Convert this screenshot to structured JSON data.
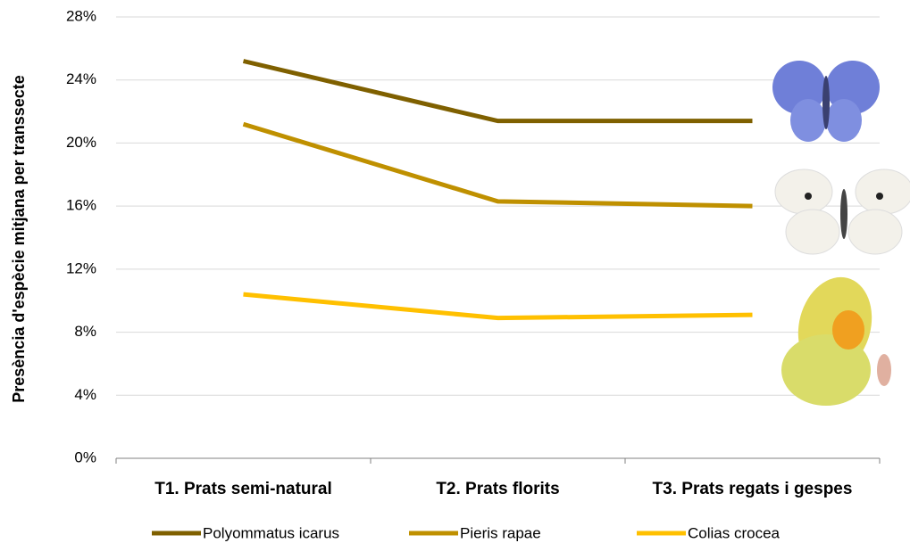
{
  "chart_data": {
    "type": "line",
    "y_label": "Presència d'espècie mitjana per transsecte",
    "categories": [
      "T1. Prats semi-natural",
      "T2. Prats florits",
      "T3. Prats regats i gespes"
    ],
    "series": [
      {
        "name": "Polyommatus icarus",
        "color": "#7f6000",
        "values": [
          25.2,
          21.4,
          21.4
        ]
      },
      {
        "name": "Pieris rapae",
        "color": "#bf9000",
        "values": [
          21.2,
          16.3,
          16.0
        ]
      },
      {
        "name": "Colias crocea",
        "color": "#ffc000",
        "values": [
          10.4,
          8.9,
          9.1
        ]
      }
    ],
    "ylim": [
      0,
      28
    ],
    "yticks": [
      {
        "value": 0,
        "label": "0%"
      },
      {
        "value": 4,
        "label": "4%"
      },
      {
        "value": 8,
        "label": "8%"
      },
      {
        "value": 12,
        "label": "12%"
      },
      {
        "value": 16,
        "label": "16%"
      },
      {
        "value": 20,
        "label": "20%"
      },
      {
        "value": 24,
        "label": "24%"
      },
      {
        "value": 28,
        "label": "28%"
      }
    ],
    "grid": true,
    "legend": "bottom"
  }
}
